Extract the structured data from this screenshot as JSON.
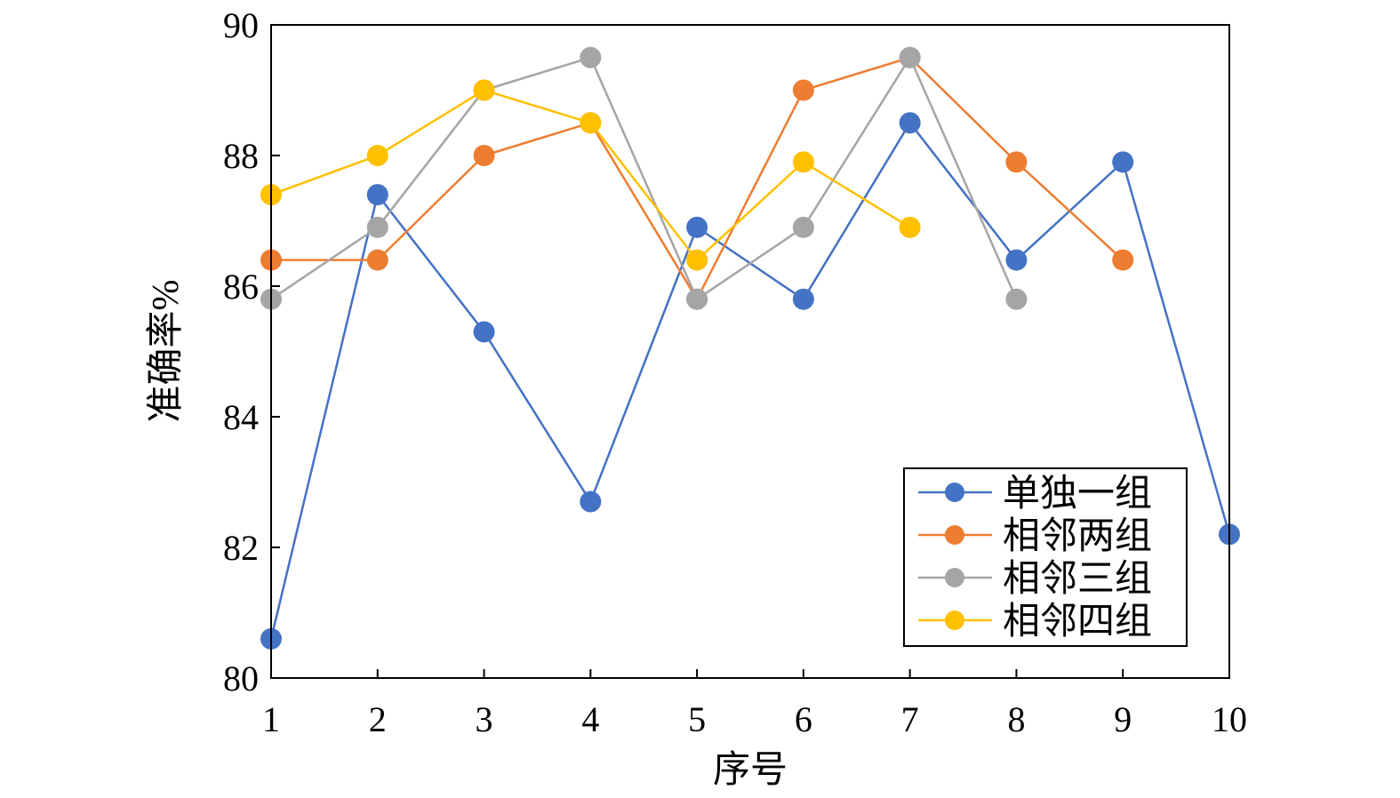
{
  "chart_data": {
    "type": "line",
    "xlabel": "序号",
    "ylabel": "准确率%",
    "x": [
      1,
      2,
      3,
      4,
      5,
      6,
      7,
      8,
      9,
      10
    ],
    "xlim": [
      1,
      10
    ],
    "ylim": [
      80,
      90
    ],
    "yticks": [
      80,
      82,
      84,
      86,
      88,
      90
    ],
    "grid": false,
    "legend_position": "bottom-right",
    "series": [
      {
        "name": "单独一组",
        "color": "#4472C4",
        "x": [
          1,
          2,
          3,
          4,
          5,
          6,
          7,
          8,
          9,
          10
        ],
        "values": [
          80.6,
          87.4,
          85.3,
          82.7,
          86.9,
          85.8,
          88.5,
          86.4,
          87.9,
          82.2
        ]
      },
      {
        "name": "相邻两组",
        "color": "#ED7D31",
        "x": [
          1,
          2,
          3,
          4,
          5,
          6,
          7,
          8,
          9
        ],
        "values": [
          86.4,
          86.4,
          88.0,
          88.5,
          85.8,
          89.0,
          89.5,
          87.9,
          86.4
        ]
      },
      {
        "name": "相邻三组",
        "color": "#A5A5A5",
        "x": [
          1,
          2,
          3,
          4,
          5,
          6,
          7,
          8
        ],
        "values": [
          85.8,
          86.9,
          89.0,
          89.5,
          85.8,
          86.9,
          89.5,
          85.8
        ]
      },
      {
        "name": "相邻四组",
        "color": "#FFC000",
        "x": [
          1,
          2,
          3,
          4,
          5,
          6,
          7
        ],
        "values": [
          87.4,
          88.0,
          89.0,
          88.5,
          86.4,
          87.9,
          86.9
        ]
      }
    ]
  }
}
